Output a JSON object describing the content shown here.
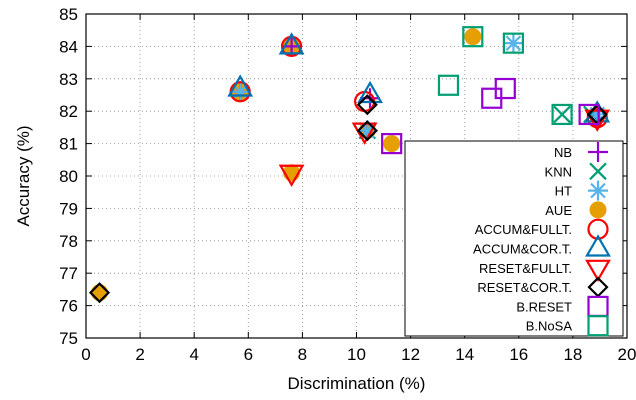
{
  "chart_data": {
    "type": "scatter",
    "xlabel": "Discrimination (%)",
    "ylabel": "Accuracy (%)",
    "xlim": [
      0,
      20
    ],
    "ylim": [
      75,
      85
    ],
    "x_ticks": [
      "0",
      "2",
      "4",
      "6",
      "8",
      "10",
      "12",
      "14",
      "16",
      "18",
      "20"
    ],
    "y_ticks": [
      "75",
      "76",
      "77",
      "78",
      "79",
      "80",
      "81",
      "82",
      "83",
      "84",
      "85"
    ],
    "grid": true,
    "grid_style": "dotted",
    "legend_position": "bottom-right",
    "series": [
      {
        "name": "NB",
        "marker": "plus",
        "color": "#9400d3",
        "points": [
          [
            7.6,
            84.0
          ],
          [
            5.7,
            82.6
          ],
          [
            10.5,
            82.4
          ],
          [
            10.4,
            81.4
          ],
          [
            18.9,
            81.8
          ]
        ]
      },
      {
        "name": "KNN",
        "marker": "x",
        "color": "#009e73",
        "points": [
          [
            17.6,
            81.9
          ],
          [
            18.7,
            81.9
          ],
          [
            10.4,
            81.4
          ]
        ]
      },
      {
        "name": "HT",
        "marker": "star",
        "color": "#56b4e9",
        "points": [
          [
            5.7,
            82.6
          ],
          [
            15.8,
            84.1
          ],
          [
            18.9,
            81.9
          ],
          [
            10.4,
            81.4
          ]
        ]
      },
      {
        "name": "AUE",
        "marker": "circle-filled",
        "color": "#e69f00",
        "points": [
          [
            0.5,
            76.4
          ],
          [
            5.7,
            82.6
          ],
          [
            7.6,
            84.0
          ],
          [
            7.6,
            80.1
          ],
          [
            10.4,
            81.4
          ],
          [
            11.3,
            81.0
          ],
          [
            14.3,
            84.3
          ]
        ]
      },
      {
        "name": "ACCUM&FULLT.",
        "marker": "circle-open",
        "color": "#ff0000",
        "points": [
          [
            5.7,
            82.6
          ],
          [
            7.6,
            84.0
          ],
          [
            10.3,
            82.3
          ],
          [
            18.9,
            81.8
          ]
        ]
      },
      {
        "name": "ACCUM&COR.T.",
        "marker": "triangle-up",
        "color": "#0072b2",
        "points": [
          [
            5.7,
            82.7
          ],
          [
            7.6,
            84.0
          ],
          [
            10.5,
            82.5
          ],
          [
            18.9,
            81.9
          ]
        ]
      },
      {
        "name": "RESET&FULLT.",
        "marker": "triangle-down",
        "color": "#ff0000",
        "points": [
          [
            7.6,
            80.1
          ],
          [
            10.3,
            81.4
          ],
          [
            18.9,
            81.8
          ]
        ]
      },
      {
        "name": "RESET&COR.T.",
        "marker": "diamond",
        "color": "#000000",
        "points": [
          [
            0.5,
            76.4
          ],
          [
            10.4,
            81.4
          ],
          [
            10.4,
            82.2
          ],
          [
            18.9,
            81.9
          ]
        ]
      },
      {
        "name": "B.RESET",
        "marker": "square",
        "color": "#9400d3",
        "points": [
          [
            11.3,
            81.0
          ],
          [
            15.0,
            82.4
          ],
          [
            15.5,
            82.7
          ],
          [
            18.6,
            81.9
          ]
        ]
      },
      {
        "name": "B.NoSA",
        "marker": "square",
        "color": "#009e73",
        "points": [
          [
            13.4,
            82.8
          ],
          [
            14.3,
            84.3
          ],
          [
            15.8,
            84.1
          ],
          [
            17.6,
            81.9
          ]
        ]
      }
    ]
  }
}
